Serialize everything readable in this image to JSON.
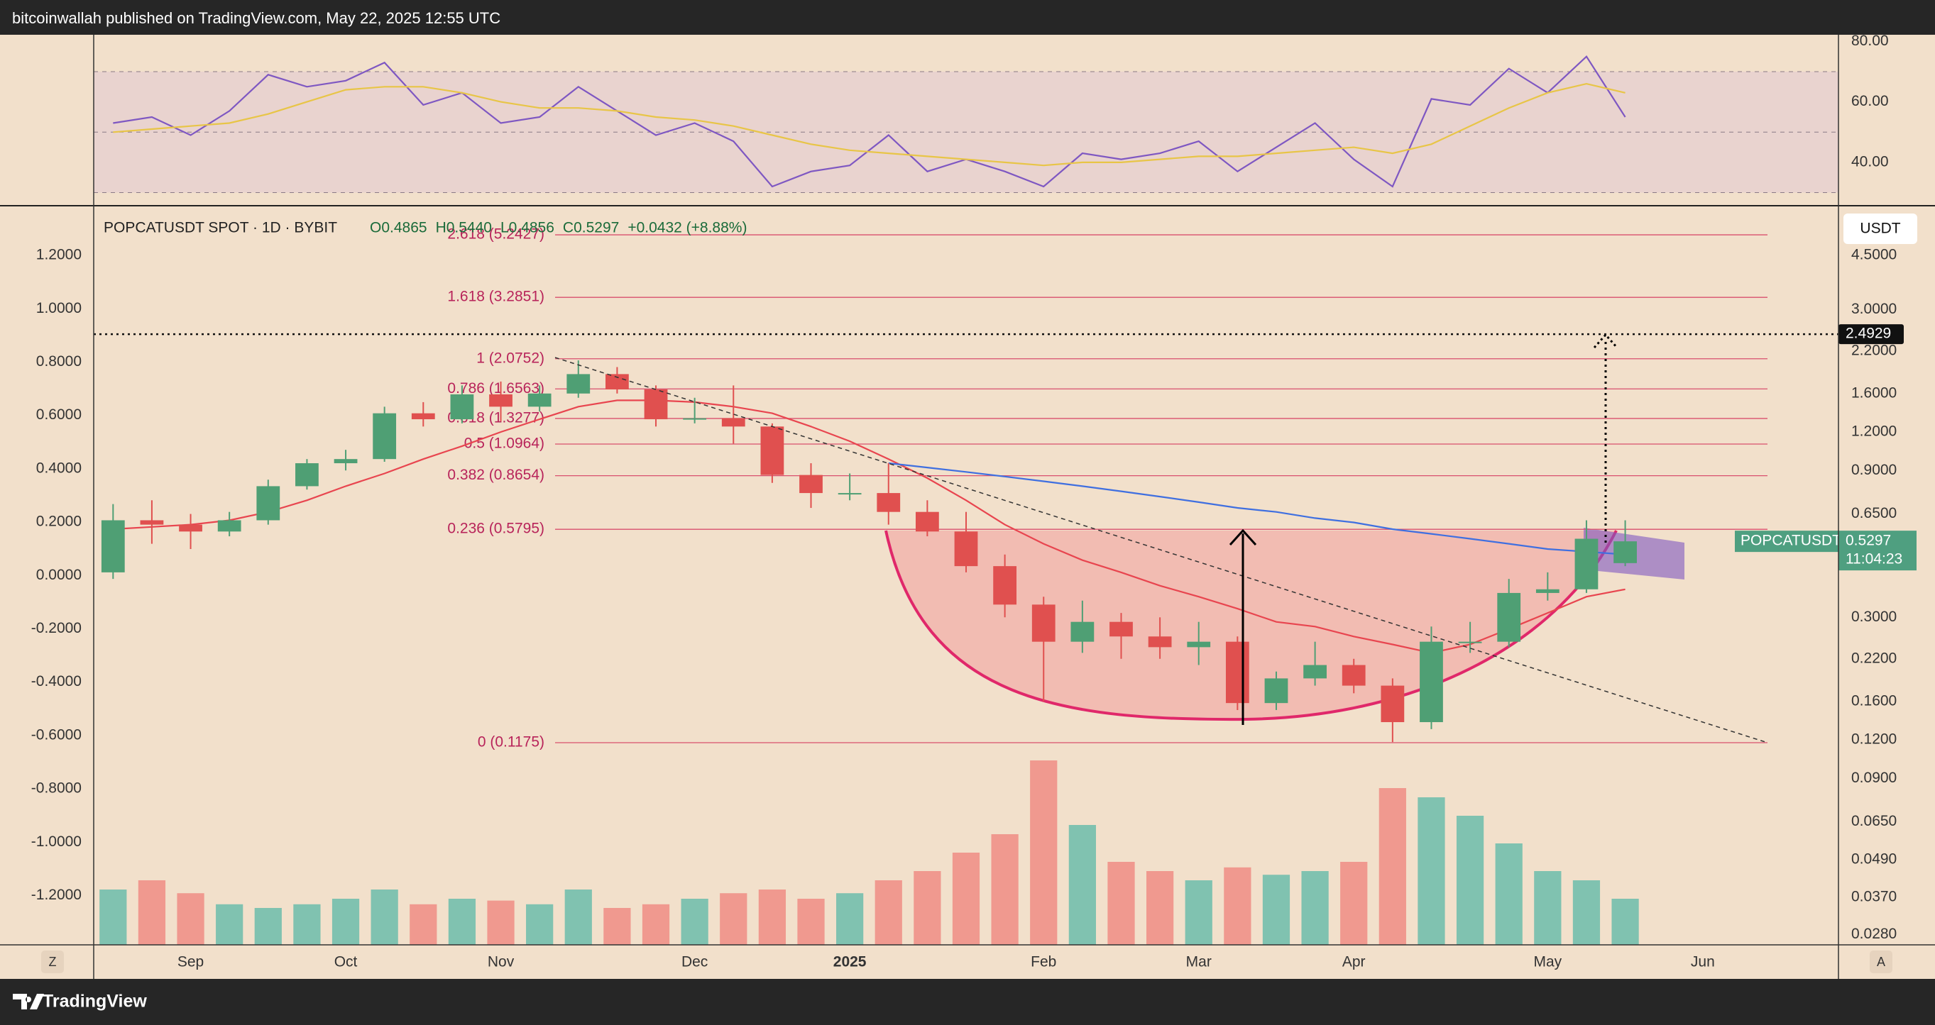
{
  "header": {
    "published": "bitcoinwallah published on TradingView.com, May 22, 2025 12:55 UTC"
  },
  "toolbar": {
    "left_button": "Z",
    "right_button": "A"
  },
  "footer": {
    "brand": "TradingView"
  },
  "chart_data": [
    {
      "type": "line",
      "ylim": [
        25.9,
        82.2
      ],
      "yticks": [
        {
          "value": 80,
          "label": "80.00"
        },
        {
          "value": 60,
          "label": "60.00"
        },
        {
          "value": 40,
          "label": "40.00"
        }
      ],
      "bands": [
        70,
        50,
        30
      ],
      "band_color": "#e9d3cf",
      "series": [
        {
          "color": "#7e57c2",
          "values": [
            53,
            55,
            49,
            57,
            69,
            65,
            67,
            73,
            59,
            63,
            53,
            55,
            65,
            57,
            49,
            53,
            47,
            32,
            37,
            39,
            49,
            37,
            41,
            37,
            32,
            43,
            41,
            43,
            47,
            37,
            45,
            53,
            41,
            32,
            61,
            59,
            71,
            63,
            75,
            55
          ]
        },
        {
          "color": "#e8c547",
          "values": [
            50,
            51,
            52,
            53,
            56,
            60,
            64,
            65,
            65,
            63,
            60,
            58,
            58,
            57,
            55,
            54,
            52,
            49,
            46,
            44,
            43,
            42,
            41,
            40,
            39,
            40,
            40,
            41,
            42,
            42,
            43,
            44,
            45,
            43,
            46,
            52,
            58,
            63,
            66,
            63
          ]
        }
      ]
    },
    {
      "type": "candlestick",
      "title": "POPCATUSDT SPOT · 1D · BYBIT",
      "legend_values": [
        "O0.4865",
        "H0.5440",
        "L0.4856",
        "C0.5297",
        "+0.0432 (+8.88%)"
      ],
      "currency": "USDT",
      "categories": [
        null,
        null,
        "Sep",
        null,
        null,
        null,
        "Oct",
        null,
        null,
        null,
        "Nov",
        null,
        null,
        null,
        null,
        "Dec",
        null,
        null,
        null,
        "2025",
        null,
        null,
        null,
        null,
        "Feb",
        null,
        null,
        null,
        "Mar",
        null,
        null,
        null,
        "Apr",
        null,
        null,
        null,
        null,
        "May",
        null,
        null,
        null,
        "Jun",
        null,
        null,
        null
      ],
      "open": [
        0.42,
        0.62,
        0.6,
        0.57,
        0.62,
        0.8,
        0.95,
        0.98,
        1.38,
        1.32,
        1.59,
        1.45,
        1.6,
        1.85,
        1.65,
        1.32,
        1.33,
        1.25,
        0.87,
        0.76,
        0.76,
        0.66,
        0.57,
        0.44,
        0.33,
        0.25,
        0.29,
        0.26,
        0.24,
        0.25,
        0.158,
        0.19,
        0.21,
        0.18,
        0.137,
        0.25,
        0.25,
        0.36,
        0.37,
        0.45,
        null,
        null,
        null,
        null,
        null
      ],
      "high": [
        0.7,
        0.72,
        0.65,
        0.66,
        0.84,
        0.98,
        1.05,
        1.45,
        1.5,
        1.7,
        1.75,
        1.7,
        2.05,
        1.95,
        1.7,
        1.55,
        1.7,
        1.28,
        0.95,
        0.88,
        0.95,
        0.72,
        0.66,
        0.48,
        0.35,
        0.34,
        0.31,
        0.3,
        0.29,
        0.26,
        0.2,
        0.25,
        0.22,
        0.19,
        0.28,
        0.29,
        0.4,
        0.42,
        0.62,
        0.62,
        null,
        null,
        null,
        null,
        null
      ],
      "low": [
        0.4,
        0.52,
        0.5,
        0.55,
        0.6,
        0.78,
        0.9,
        0.96,
        1.25,
        1.28,
        1.3,
        1.4,
        1.55,
        1.6,
        1.25,
        1.28,
        1.1,
        0.82,
        0.68,
        0.72,
        0.6,
        0.55,
        0.42,
        0.3,
        0.16,
        0.23,
        0.22,
        0.22,
        0.21,
        0.15,
        0.15,
        0.18,
        0.17,
        0.118,
        0.13,
        0.23,
        0.24,
        0.34,
        0.36,
        0.44,
        null,
        null,
        null,
        null,
        null
      ],
      "close": [
        0.62,
        0.6,
        0.57,
        0.62,
        0.8,
        0.95,
        0.98,
        1.38,
        1.32,
        1.59,
        1.45,
        1.6,
        1.85,
        1.65,
        1.32,
        1.33,
        1.25,
        0.87,
        0.76,
        0.76,
        0.66,
        0.57,
        0.44,
        0.33,
        0.25,
        0.29,
        0.26,
        0.24,
        0.25,
        0.158,
        0.19,
        0.21,
        0.18,
        0.137,
        0.25,
        0.25,
        0.36,
        0.37,
        0.54,
        0.5297,
        null,
        null,
        null,
        null,
        null
      ],
      "volume": [
        30,
        35,
        28,
        22,
        20,
        22,
        25,
        30,
        22,
        25,
        24,
        22,
        30,
        20,
        22,
        25,
        28,
        30,
        25,
        28,
        35,
        40,
        50,
        60,
        100,
        65,
        45,
        40,
        35,
        42,
        38,
        40,
        45,
        85,
        80,
        70,
        55,
        40,
        35,
        25,
        null,
        null,
        null,
        null,
        null
      ],
      "up_color": "#4f9f74",
      "down_color": "#e0504f",
      "volume_up_color": "#80c2b0",
      "volume_down_color": "#f0998f",
      "moving_averages": [
        {
          "color": "#e8454f",
          "values": [
            0.58,
            0.59,
            0.6,
            0.62,
            0.66,
            0.72,
            0.8,
            0.88,
            0.98,
            1.08,
            1.2,
            1.32,
            1.45,
            1.52,
            1.52,
            1.5,
            1.45,
            1.38,
            1.25,
            1.12,
            0.98,
            0.85,
            0.72,
            0.6,
            0.52,
            0.46,
            0.42,
            0.38,
            0.35,
            0.32,
            0.29,
            0.28,
            0.26,
            0.245,
            0.23,
            0.245,
            0.275,
            0.31,
            0.35,
            0.37,
            null,
            null,
            null,
            null,
            null
          ]
        },
        {
          "color": "#3f6fe0",
          "values": [
            null,
            null,
            null,
            null,
            null,
            null,
            null,
            null,
            null,
            null,
            null,
            null,
            null,
            null,
            null,
            null,
            null,
            null,
            null,
            null,
            0.95,
            0.92,
            0.89,
            0.86,
            0.83,
            0.8,
            0.77,
            0.74,
            0.71,
            0.68,
            0.66,
            0.63,
            0.61,
            0.58,
            0.56,
            0.54,
            0.52,
            0.5,
            0.49,
            0.48,
            null,
            null,
            null,
            null,
            null
          ]
        }
      ],
      "ylim": [
        0.0259,
        6.45
      ],
      "log_scale": true,
      "yticks": [
        {
          "value": 4.5,
          "label": "4.5000"
        },
        {
          "value": 3,
          "label": "3.0000"
        },
        {
          "value": 2.2,
          "label": "2.2000"
        },
        {
          "value": 1.6,
          "label": "1.6000"
        },
        {
          "value": 1.2,
          "label": "1.2000"
        },
        {
          "value": 0.9,
          "label": "0.9000"
        },
        {
          "value": 0.65,
          "label": "0.6500"
        },
        {
          "value": 0.3,
          "label": "0.3000"
        },
        {
          "value": 0.22,
          "label": "0.2200"
        },
        {
          "value": 0.16,
          "label": "0.1600"
        },
        {
          "value": 0.12,
          "label": "0.1200"
        },
        {
          "value": 0.09,
          "label": "0.0900"
        },
        {
          "value": 0.065,
          "label": "0.0650"
        },
        {
          "value": 0.049,
          "label": "0.0490"
        },
        {
          "value": 0.037,
          "label": "0.0370"
        },
        {
          "value": 0.028,
          "label": "0.0280"
        }
      ],
      "y2lim": [
        -1.385,
        1.381
      ],
      "y2ticks": [
        {
          "value": 1.2,
          "label": "1.2000"
        },
        {
          "value": 1,
          "label": "1.0000"
        },
        {
          "value": 0.8,
          "label": "0.8000"
        },
        {
          "value": 0.6,
          "label": "0.6000"
        },
        {
          "value": 0.4,
          "label": "0.4000"
        },
        {
          "value": 0.2,
          "label": "0.2000"
        },
        {
          "value": 0,
          "label": "0.0000"
        },
        {
          "value": -0.2,
          "label": "-0.2000"
        },
        {
          "value": -0.4,
          "label": "-0.4000"
        },
        {
          "value": -0.6,
          "label": "-0.6000"
        },
        {
          "value": -0.8,
          "label": "-0.8000"
        },
        {
          "value": -1,
          "label": "-1.0000"
        },
        {
          "value": -1.2,
          "label": "-1.2000"
        }
      ],
      "fib_levels": [
        {
          "value": 5.2427,
          "label": "2.618 (5.2427)"
        },
        {
          "value": 3.2851,
          "label": "1.618 (3.2851)"
        },
        {
          "value": 2.0752,
          "label": "1 (2.0752)"
        },
        {
          "value": 1.6563,
          "label": "0.786 (1.6563)"
        },
        {
          "value": 1.3277,
          "label": "0.618 (1.3277)"
        },
        {
          "value": 1.0964,
          "label": "0.5 (1.0964)"
        },
        {
          "value": 0.8654,
          "label": "0.382 (0.8654)"
        },
        {
          "value": 0.5795,
          "label": "0.236 (0.5795)"
        },
        {
          "value": 0.1175,
          "label": "0 (0.1175)"
        }
      ],
      "fib_color": "#d9506e",
      "fib_label_color": "#b8245a",
      "target": 2.4929,
      "last_price": {
        "symbol": "POPCATUSDT",
        "price": 0.5297,
        "countdown": "11:04:23",
        "color": "#4f9f80"
      }
    }
  ]
}
